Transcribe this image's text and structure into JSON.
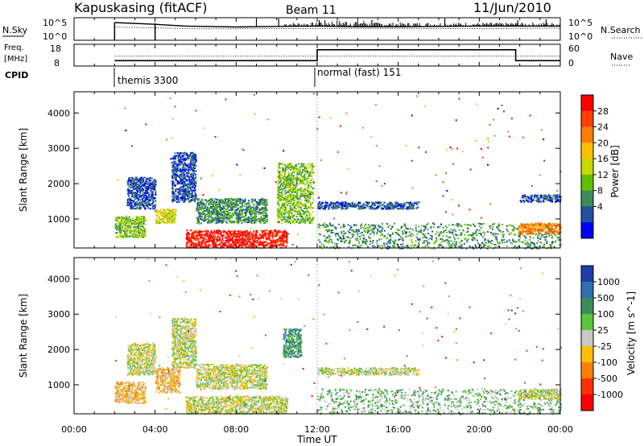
{
  "header": {
    "station": "Kapuskasing (fitACF)",
    "beam": "Beam 11",
    "date": "11/Jun/2010"
  },
  "strip_labels": {
    "nsky": "N.Sky",
    "nsky_ticks": [
      "10^5",
      "10^0"
    ],
    "nsearch": "N.Search",
    "nsearch_ticks": [
      "10^5",
      "10^0"
    ],
    "freq_top": "Freq.",
    "freq_bottom": "[MHz]",
    "freq_ticks": [
      "18",
      "8"
    ],
    "nave": "Nave",
    "nave_ticks": [
      "60",
      "0"
    ],
    "cpid": "CPID"
  },
  "cpid_labels": [
    "themis 3300",
    "normal (fast) 151"
  ],
  "axes": {
    "xlabel": "Time UT",
    "x_ticks": [
      "00:00",
      "04:00",
      "08:00",
      "12:00",
      "16:00",
      "20:00",
      "00:00"
    ],
    "ylabel_power": "Slant Range [km]",
    "ylabel_velocity": "Slant Range [km]",
    "y_ticks": [
      "4000",
      "3000",
      "2000",
      "1000"
    ]
  },
  "colorbars": {
    "power": {
      "label": "Power [dB]",
      "ticks": [
        "28",
        "24",
        "20",
        "16",
        "12",
        "8",
        "4"
      ],
      "colors": [
        "#ff0000",
        "#ff4000",
        "#ff7f00",
        "#ffbf00",
        "#c8d800",
        "#5fc000",
        "#3c8c5a",
        "#2050a0",
        "#0000ff"
      ]
    },
    "velocity": {
      "label": "Velocity [m s^-1]",
      "ticks": [
        "1000",
        "500",
        "100",
        "25",
        "-25",
        "-100",
        "-500",
        "-1000"
      ],
      "colors": [
        "#1f3ea8",
        "#2d6fb0",
        "#3b8c5b",
        "#5ac43a",
        "#c8c8c8",
        "#ffbf00",
        "#ff8000",
        "#ff3000",
        "#ff0000"
      ]
    }
  },
  "chart_data": [
    {
      "type": "line",
      "title": "N.Sky / N.Search",
      "x_range_hours": [
        0,
        24
      ],
      "series": [
        {
          "name": "N.Sky",
          "x": [
            2.0,
            4.0,
            5.5,
            8.0,
            10.0,
            12.0,
            14.0,
            16.0,
            18.0,
            20.0,
            22.0,
            24.0
          ],
          "values": [
            1.0,
            0.9,
            0.8,
            0.75,
            0.78,
            0.8,
            0.76,
            0.76,
            0.78,
            0.8,
            0.8,
            0.8
          ]
        },
        {
          "name": "N.Search",
          "x": [
            2.0,
            4.0,
            6.0,
            8.0,
            10.0,
            12.0,
            16.0,
            20.0,
            24.0
          ],
          "values": [
            0.75,
            0.7,
            0.65,
            0.65,
            0.66,
            0.66,
            0.66,
            0.66,
            0.68
          ]
        }
      ]
    },
    {
      "type": "line",
      "title": "Freq / Nave",
      "x_range_hours": [
        0,
        24
      ],
      "ylim_freq_mhz": [
        8,
        18
      ],
      "ylim_nave": [
        0,
        60
      ],
      "series": [
        {
          "name": "Freq.",
          "x": [
            2.0,
            4.0,
            4.0,
            12.0,
            12.0,
            21.8,
            21.8,
            24.0
          ],
          "values": [
            10.5,
            10.5,
            10.5,
            10.5,
            15.5,
            15.5,
            10.5,
            10.5
          ]
        },
        {
          "name": "Nave",
          "x": [
            2.0,
            12.0,
            24.0
          ],
          "values": [
            27,
            27,
            27
          ]
        }
      ]
    },
    {
      "type": "heatmap",
      "title": "Power",
      "xlabel": "Time UT",
      "ylabel": "Slant Range [km]",
      "xlim_hours": [
        0,
        24
      ],
      "ylim_km": [
        180,
        4600
      ],
      "regions": [
        {
          "t0": 2.0,
          "t1": 3.5,
          "r0": 500,
          "r1": 1100,
          "level": 3
        },
        {
          "t0": 2.6,
          "t1": 4.0,
          "r0": 1300,
          "r1": 2200,
          "level": 1
        },
        {
          "t0": 4.0,
          "t1": 5.0,
          "r0": 900,
          "r1": 1300,
          "level": 4
        },
        {
          "t0": 4.8,
          "t1": 6.0,
          "r0": 1500,
          "r1": 2900,
          "level": 1
        },
        {
          "t0": 5.5,
          "t1": 10.5,
          "r0": 200,
          "r1": 700,
          "level": 8
        },
        {
          "t0": 6.0,
          "t1": 9.5,
          "r0": 900,
          "r1": 1600,
          "level": 2
        },
        {
          "t0": 10.0,
          "t1": 11.8,
          "r0": 900,
          "r1": 2600,
          "level": 3
        },
        {
          "t0": 12.0,
          "t1": 17.0,
          "r0": 1300,
          "r1": 1500,
          "level": 1
        },
        {
          "t0": 12.0,
          "t1": 24.0,
          "r0": 180,
          "r1": 900,
          "level": 2
        },
        {
          "t0": 21.9,
          "t1": 24.0,
          "r0": 600,
          "r1": 900,
          "level": 6
        },
        {
          "t0": 22.0,
          "t1": 24.0,
          "r0": 1500,
          "r1": 1700,
          "level": 1
        }
      ]
    },
    {
      "type": "heatmap",
      "title": "Velocity",
      "xlabel": "Time UT",
      "ylabel": "Slant Range [km]",
      "xlim_hours": [
        0,
        24
      ],
      "ylim_km": [
        180,
        4600
      ],
      "regions": [
        {
          "t0": 2.0,
          "t1": 3.5,
          "r0": 500,
          "r1": 1100,
          "level": 3
        },
        {
          "t0": 2.6,
          "t1": 4.0,
          "r0": 1300,
          "r1": 2200,
          "level": 4
        },
        {
          "t0": 4.0,
          "t1": 5.2,
          "r0": 800,
          "r1": 1500,
          "level": 3
        },
        {
          "t0": 4.8,
          "t1": 6.0,
          "r0": 1500,
          "r1": 2900,
          "level": 4
        },
        {
          "t0": 5.5,
          "t1": 10.5,
          "r0": 200,
          "r1": 700,
          "level": 4
        },
        {
          "t0": 6.0,
          "t1": 9.5,
          "r0": 900,
          "r1": 1600,
          "level": 4
        },
        {
          "t0": 10.3,
          "t1": 11.2,
          "r0": 1800,
          "r1": 2600,
          "level": 6
        },
        {
          "t0": 12.0,
          "t1": 17.0,
          "r0": 1300,
          "r1": 1500,
          "level": 4
        },
        {
          "t0": 12.0,
          "t1": 24.0,
          "r0": 180,
          "r1": 900,
          "level": 5
        },
        {
          "t0": 21.9,
          "t1": 24.0,
          "r0": 600,
          "r1": 900,
          "level": 4
        }
      ]
    }
  ]
}
